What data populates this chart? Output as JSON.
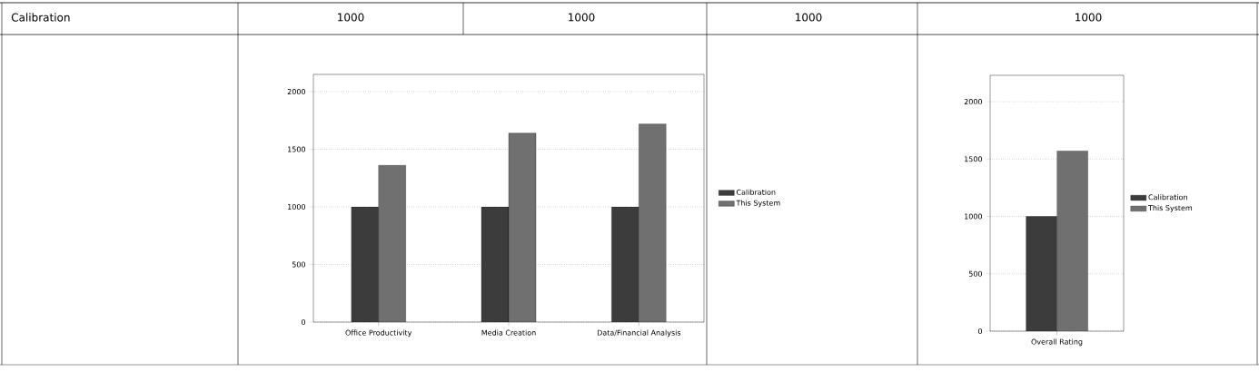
{
  "chart_data": [
    {
      "type": "other",
      "annotations": [
        "Calibration",
        "1000",
        "1000",
        "1000",
        "1000"
      ]
    },
    {
      "type": "bar",
      "categories": [
        "Office Productivity",
        "Media Creation",
        "Data/Financial Analysis"
      ],
      "series": [
        {
          "name": "Calibration",
          "color": "#3c3c3c",
          "values": [
            1000,
            1000,
            1000
          ]
        },
        {
          "name": "This System",
          "color": "#707070",
          "values": [
            1360,
            1640,
            1720
          ]
        }
      ],
      "ylim": [
        0,
        2150
      ],
      "yticks": [
        0,
        500,
        1000,
        1500,
        2000
      ],
      "grid": "y",
      "legend": "right"
    },
    {
      "type": "bar",
      "categories": [
        "Overall Rating"
      ],
      "series": [
        {
          "name": "Calibration",
          "color": "#3c3c3c",
          "values": [
            1000
          ]
        },
        {
          "name": "This System",
          "color": "#707070",
          "values": [
            1570
          ]
        }
      ],
      "ylim": [
        0,
        2230
      ],
      "yticks": [
        0,
        500,
        1000,
        1500,
        2000
      ],
      "grid": "y",
      "legend": "right"
    }
  ]
}
